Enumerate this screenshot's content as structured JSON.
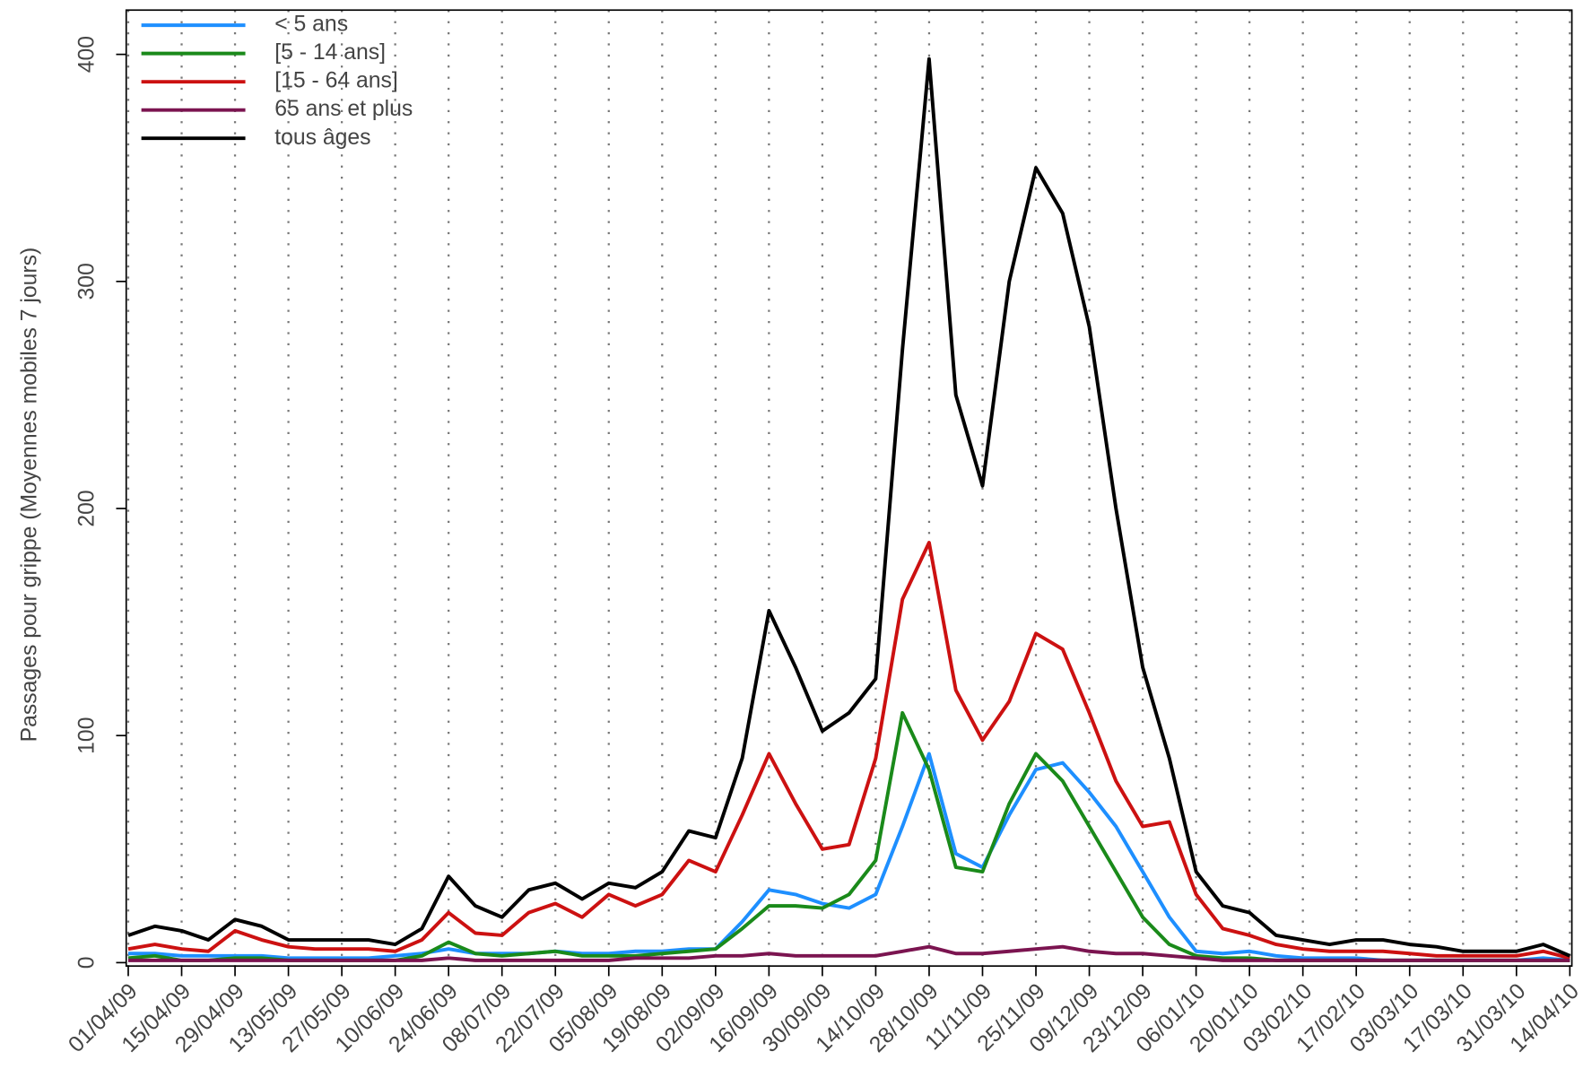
{
  "chart_data": {
    "type": "line",
    "ylabel": "Passages pour grippe (Moyennes mobiles 7 jours)",
    "categories": [
      "01/04/09",
      null,
      "15/04/09",
      null,
      "29/04/09",
      null,
      "13/05/09",
      null,
      "27/05/09",
      null,
      "10/06/09",
      null,
      "24/06/09",
      null,
      "08/07/09",
      null,
      "22/07/09",
      null,
      "05/08/09",
      null,
      "19/08/09",
      null,
      "02/09/09",
      null,
      "16/09/09",
      null,
      "30/09/09",
      null,
      "14/10/09",
      null,
      "28/10/09",
      null,
      "11/11/09",
      null,
      "25/11/09",
      null,
      "09/12/09",
      null,
      "23/12/09",
      null,
      "06/01/10",
      null,
      "20/01/10",
      null,
      "03/02/10",
      null,
      "17/02/10",
      null,
      "03/03/10",
      null,
      "17/03/10",
      null,
      "31/03/10",
      null,
      "14/04/10"
    ],
    "series": [
      {
        "name": "< 5 ans",
        "color": "#1e8fff",
        "values": [
          4,
          4,
          3,
          3,
          3,
          3,
          2,
          2,
          2,
          2,
          3,
          4,
          6,
          4,
          4,
          4,
          5,
          4,
          4,
          5,
          5,
          6,
          6,
          18,
          32,
          30,
          26,
          24,
          30,
          60,
          92,
          48,
          42,
          65,
          85,
          88,
          75,
          60,
          40,
          20,
          5,
          4,
          5,
          3,
          2,
          2,
          2,
          1,
          1,
          1,
          1,
          1,
          1,
          2,
          1
        ]
      },
      {
        "name": "[5 - 14 ans]",
        "color": "#1a8a1a",
        "values": [
          2,
          3,
          1,
          1,
          2,
          2,
          1,
          1,
          1,
          1,
          1,
          3,
          9,
          4,
          3,
          4,
          5,
          3,
          3,
          3,
          4,
          5,
          6,
          15,
          25,
          25,
          24,
          30,
          45,
          110,
          85,
          42,
          40,
          70,
          92,
          80,
          60,
          40,
          20,
          8,
          3,
          2,
          2,
          1,
          1,
          1,
          1,
          1,
          1,
          1,
          1,
          1,
          1,
          1,
          1
        ]
      },
      {
        "name": "[15 - 64 ans]",
        "color": "#cc1111",
        "values": [
          6,
          8,
          6,
          5,
          14,
          10,
          7,
          6,
          6,
          6,
          5,
          10,
          22,
          13,
          12,
          22,
          26,
          20,
          30,
          25,
          30,
          45,
          40,
          65,
          92,
          70,
          50,
          52,
          90,
          160,
          185,
          120,
          98,
          115,
          145,
          138,
          110,
          80,
          60,
          62,
          30,
          15,
          12,
          8,
          6,
          5,
          5,
          5,
          4,
          3,
          3,
          3,
          3,
          5,
          2
        ]
      },
      {
        "name": "65 ans et plus",
        "color": "#7b1450",
        "values": [
          1,
          1,
          1,
          1,
          1,
          1,
          1,
          1,
          1,
          1,
          1,
          1,
          2,
          1,
          1,
          1,
          1,
          1,
          1,
          2,
          2,
          2,
          3,
          3,
          4,
          3,
          3,
          3,
          3,
          5,
          7,
          4,
          4,
          5,
          6,
          7,
          5,
          4,
          4,
          3,
          2,
          1,
          1,
          1,
          1,
          1,
          1,
          1,
          1,
          1,
          1,
          1,
          1,
          1,
          1
        ]
      },
      {
        "name": "tous âges",
        "color": "#000000",
        "values": [
          12,
          16,
          14,
          10,
          19,
          16,
          10,
          10,
          10,
          10,
          8,
          15,
          38,
          25,
          20,
          32,
          35,
          28,
          35,
          33,
          40,
          58,
          55,
          90,
          155,
          130,
          102,
          110,
          125,
          270,
          398,
          250,
          210,
          300,
          350,
          330,
          280,
          200,
          130,
          90,
          40,
          25,
          22,
          12,
          10,
          8,
          10,
          10,
          8,
          7,
          5,
          5,
          5,
          8,
          3
        ]
      }
    ],
    "ylim": [
      -1.5,
      419.5
    ],
    "yticks": [
      0,
      100,
      200,
      300,
      400
    ],
    "grid": "x",
    "legend": "top-left"
  }
}
